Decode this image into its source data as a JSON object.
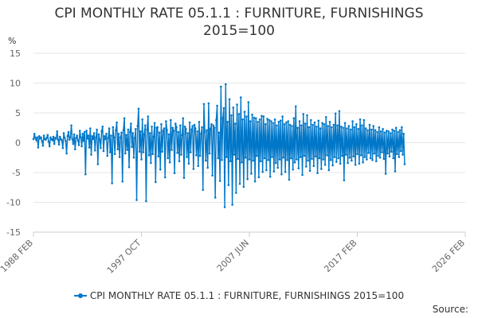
{
  "chart_data": {
    "type": "line",
    "title_lines": [
      "CPI MONTHLY RATE 05.1.1 : FURNITURE, FURNISHINGS",
      "2015=100"
    ],
    "ylabel": "%",
    "xlabel": "",
    "ylim": [
      -15,
      15
    ],
    "yticks": [
      15,
      10,
      5,
      0,
      -5,
      -10,
      -15
    ],
    "x_tick_labels": [
      "1988 FEB",
      "1997 OCT",
      "2007 JUN",
      "2017 FEB",
      "2026 FEB"
    ],
    "x_range_months": [
      "1988-02",
      "2026-02"
    ],
    "legend": [
      "CPI MONTHLY RATE 05.1.1 : FURNITURE, FURNISHINGS 2015=100"
    ],
    "color": "#0077c8",
    "grid": "horizontal",
    "series": [
      {
        "name": "CPI MONTHLY RATE 05.1.1 : FURNITURE, FURNISHINGS 2015=100",
        "x_start": "1988-02",
        "frequency": "monthly",
        "values": [
          0.6,
          1.5,
          0.8,
          0.4,
          0.9,
          -0.8,
          1.1,
          0.7,
          0.9,
          0.3,
          -0.5,
          1.2,
          0.6,
          0.5,
          0.8,
          1.3,
          0.2,
          -0.6,
          0.9,
          0.6,
          0.4,
          1.0,
          -0.2,
          0.8,
          0.7,
          1.9,
          0.5,
          -0.3,
          1.0,
          0.6,
          0.4,
          -0.9,
          1.6,
          0.8,
          0.3,
          -1.8,
          1.1,
          1.8,
          0.5,
          0.9,
          2.9,
          0.6,
          -0.2,
          1.4,
          -1.1,
          0.8,
          1.2,
          0.4,
          -0.4,
          2.0,
          0.9,
          -0.6,
          1.5,
          0.3,
          1.8,
          -5.3,
          2.0,
          0.7,
          1.2,
          -0.8,
          2.4,
          -2.0,
          1.1,
          0.6,
          1.6,
          -1.3,
          0.9,
          2.2,
          -3.6,
          1.4,
          0.5,
          -0.9,
          1.9,
          2.7,
          -1.4,
          1.1,
          0.6,
          1.5,
          -2.2,
          0.8,
          2.4,
          -1.6,
          1.2,
          -6.8,
          2.6,
          0.9,
          -1.9,
          2.1,
          3.4,
          -1.1,
          1.5,
          -2.4,
          0.9,
          1.7,
          -6.5,
          2.1,
          4.1,
          -1.8,
          1.3,
          -1.2,
          2.2,
          -4.1,
          1.8,
          3.2,
          -0.7,
          1.6,
          -2.5,
          0.8,
          2.3,
          -9.6,
          2.8,
          5.7,
          -1.5,
          1.9,
          -2.8,
          3.9,
          -1.6,
          1.4,
          2.9,
          -9.8,
          2.2,
          4.4,
          -2.1,
          1.6,
          -3.4,
          2.7,
          -1.9,
          1.0,
          3.3,
          -6.6,
          2.5,
          2.6,
          -2.3,
          1.7,
          -4.5,
          3.1,
          -1.5,
          2.0,
          2.4,
          -5.8,
          3.6,
          2.1,
          -2.6,
          1.4,
          -3.3,
          3.8,
          -1.2,
          2.5,
          2.0,
          -5.1,
          3.2,
          2.6,
          -1.7,
          1.8,
          -3.1,
          2.9,
          -2.0,
          1.3,
          4.1,
          -5.9,
          2.7,
          2.3,
          -2.4,
          1.6,
          -3.5,
          3.4,
          -1.6,
          2.2,
          2.8,
          -4.4,
          3.0,
          2.4,
          -2.1,
          1.9,
          -3.9,
          3.5,
          -2.2,
          1.5,
          2.6,
          -7.9,
          6.5,
          1.8,
          -3.0,
          2.1,
          -4.2,
          6.6,
          -1.8,
          2.3,
          3.1,
          -5.5,
          2.9,
          2.5,
          -9.2,
          3.8,
          6.2,
          -2.6,
          1.7,
          -6.4,
          9.4,
          -2.9,
          4.1,
          5.8,
          -10.8,
          9.8,
          -2.4,
          3.5,
          -7.1,
          7.3,
          -3.1,
          4.6,
          -10.4,
          5.9,
          -2.0,
          3.2,
          -8.4,
          6.4,
          -2.7,
          4.8,
          -6.9,
          7.6,
          -3.3,
          3.9,
          -7.4,
          5.2,
          -2.5,
          4.4,
          -6.1,
          6.8,
          -2.8,
          3.6,
          -5.2,
          4.7,
          -3.0,
          4.2,
          -6.5,
          4.1,
          -2.2,
          3.5,
          -5.8,
          3.9,
          -3.1,
          4.5,
          -4.9,
          4.4,
          -2.6,
          3.1,
          -4.6,
          4.0,
          -2.9,
          3.8,
          -5.7,
          3.6,
          -2.4,
          3.3,
          -4.8,
          3.9,
          -3.4,
          2.9,
          -4.2,
          3.5,
          -2.8,
          3.7,
          -5.3,
          4.4,
          -2.5,
          3.1,
          -4.9,
          3.4,
          -2.9,
          3.6,
          -6.2,
          3.0,
          -2.6,
          2.8,
          -4.5,
          4.1,
          -3.3,
          6.1,
          -2.8,
          2.5,
          -4.3,
          3.6,
          -2.4,
          2.9,
          -5.4,
          4.8,
          -2.2,
          3.2,
          -4.0,
          4.6,
          -3.0,
          2.6,
          -4.7,
          3.8,
          -2.7,
          3.0,
          -3.9,
          3.4,
          -2.3,
          2.7,
          -5.1,
          3.7,
          -2.6,
          2.4,
          -4.4,
          3.3,
          -2.8,
          3.1,
          -3.7,
          4.3,
          -2.1,
          2.8,
          -4.6,
          3.5,
          -2.9,
          2.6,
          -3.8,
          3.0,
          -2.4,
          4.9,
          -3.2,
          2.9,
          -2.6,
          5.3,
          -3.5,
          2.7,
          -2.2,
          2.5,
          -6.3,
          3.3,
          -2.0,
          2.4,
          -3.4,
          2.8,
          -2.5,
          2.2,
          -3.0,
          3.6,
          -2.3,
          2.6,
          -3.7,
          3.1,
          -1.9,
          2.3,
          -3.5,
          3.9,
          -2.1,
          2.9,
          -3.3,
          3.8,
          -2.4,
          2.4,
          -2.8,
          2.1,
          -1.7,
          3.0,
          -2.6,
          2.2,
          -2.9,
          2.8,
          -1.8,
          2.1,
          -3.1,
          1.8,
          -2.2,
          2.6,
          -2.5,
          1.9,
          -1.6,
          2.3,
          -2.7,
          1.7,
          -5.2,
          2.0,
          -1.8,
          1.9,
          -2.3,
          1.6,
          -1.5,
          2.2,
          -2.6,
          2.0,
          -4.8,
          2.5,
          -1.9,
          1.8,
          -2.4,
          2.1,
          -1.4,
          2.6,
          -2.0,
          1.5,
          -3.6
        ]
      }
    ]
  },
  "legend": {
    "label": "CPI MONTHLY RATE 05.1.1 : FURNITURE, FURNISHINGS 2015=100"
  },
  "source": {
    "label": "Source:"
  }
}
